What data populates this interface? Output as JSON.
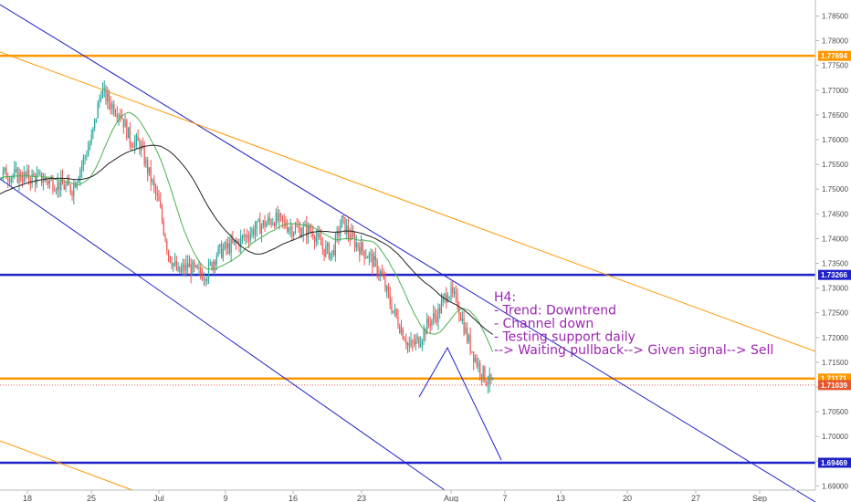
{
  "chart_data": {
    "type": "candlestick",
    "title": "",
    "xlabel": "",
    "ylabel": "",
    "ylim": [
      1.69,
      1.785
    ],
    "x_ticks": [
      "18",
      "25",
      "Jul",
      "9",
      "16",
      "23",
      "Aug",
      "7",
      "13",
      "20",
      "27",
      "Sep"
    ],
    "y_ticks": [
      "1.78500",
      "1.78000",
      "1.77500",
      "1.77000",
      "1.76500",
      "1.76000",
      "1.75500",
      "1.75000",
      "1.74500",
      "1.74000",
      "1.73500",
      "1.73000",
      "1.72500",
      "1.72000",
      "1.71500",
      "1.71000",
      "1.70500",
      "1.70000",
      "1.69500",
      "1.69000"
    ],
    "price_badges": [
      {
        "label": "1.77694",
        "value": 1.77694,
        "color": "#ff9800"
      },
      {
        "label": "1.73266",
        "value": 1.73266,
        "color": "#1f22c8"
      },
      {
        "label": "1.71171",
        "value": 1.71171,
        "color": "#ff9800"
      },
      {
        "label": "1.71039",
        "value": 1.71039,
        "color": "#e4572e"
      },
      {
        "label": "1.69469",
        "value": 1.69469,
        "color": "#1f22c8"
      }
    ],
    "horizontal_levels": [
      {
        "value": 1.77694,
        "color": "#ff9800",
        "role": "resistance"
      },
      {
        "value": 1.73266,
        "color": "#1f22c8",
        "role": "support"
      },
      {
        "value": 1.71171,
        "color": "#ff9800",
        "role": "support"
      },
      {
        "value": 1.69469,
        "color": "#1f22c8",
        "role": "target"
      }
    ],
    "current_price": 1.71039,
    "annotation": {
      "color": "#9c27b0",
      "lines": [
        "H4:",
        "- Trend: Downtrend",
        "- Channel down",
        "- Testing support daily",
        "--> Waiting pullback--> Given signal--> Sell"
      ]
    },
    "colors": {
      "up_candle": "#26a69a",
      "down_candle": "#ef5350",
      "fast_ma": "#4caf50",
      "slow_ma": "#222222",
      "channel": "#1f22c8",
      "trend": "#ff9800"
    }
  }
}
